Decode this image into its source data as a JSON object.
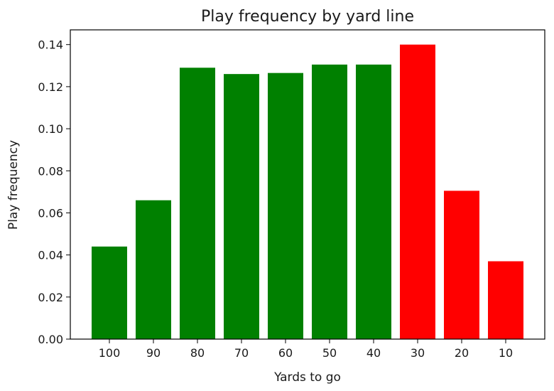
{
  "chart_data": {
    "type": "bar",
    "title": "Play frequency by yard line",
    "xlabel": "Yards to go",
    "ylabel": "Play frequency",
    "categories": [
      "100",
      "90",
      "80",
      "70",
      "60",
      "50",
      "40",
      "30",
      "20",
      "10"
    ],
    "values": [
      0.044,
      0.066,
      0.129,
      0.126,
      0.1265,
      0.1305,
      0.1305,
      0.14,
      0.0705,
      0.037
    ],
    "bar_colors": [
      "#008000",
      "#008000",
      "#008000",
      "#008000",
      "#008000",
      "#008000",
      "#008000",
      "#ff0000",
      "#ff0000",
      "#ff0000"
    ],
    "ylim": [
      0,
      0.147
    ],
    "yticks": [
      0.0,
      0.02,
      0.04,
      0.06,
      0.08,
      0.1,
      0.12,
      0.14
    ],
    "ytick_labels": [
      "0.00",
      "0.02",
      "0.04",
      "0.06",
      "0.08",
      "0.10",
      "0.12",
      "0.14"
    ],
    "grid": false,
    "legend": "none"
  }
}
